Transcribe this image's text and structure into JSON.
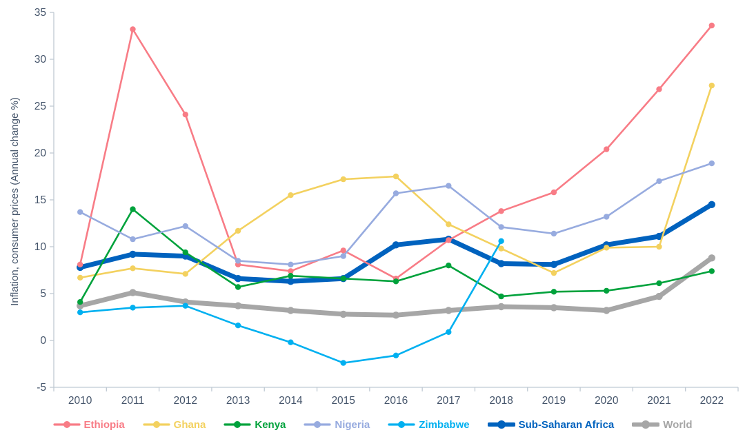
{
  "chart_data": {
    "type": "line",
    "title": "",
    "ylabel": "Inflation, consumer prices (Annual change %)",
    "xlabel": "",
    "x": [
      2010,
      2011,
      2012,
      2013,
      2014,
      2015,
      2016,
      2017,
      2018,
      2019,
      2020,
      2021,
      2022
    ],
    "ylim": [
      -5,
      35
    ],
    "yticks": [
      -5,
      0,
      5,
      10,
      15,
      20,
      25,
      30,
      35
    ],
    "grid": false,
    "legend_position": "bottom",
    "axis_color": "#bfc9d3",
    "text_color": "#44546a",
    "series": [
      {
        "name": "Ethiopia",
        "color": "#f87c86",
        "line_width": 2.6,
        "values": [
          8.1,
          33.2,
          24.1,
          8.1,
          7.4,
          9.6,
          6.6,
          10.7,
          13.8,
          15.8,
          20.4,
          26.8,
          33.6
        ]
      },
      {
        "name": "Ghana",
        "color": "#f3d15f",
        "line_width": 2.6,
        "values": [
          6.7,
          7.7,
          7.1,
          11.7,
          15.5,
          17.2,
          17.5,
          12.4,
          9.8,
          7.2,
          9.9,
          10.0,
          27.2
        ]
      },
      {
        "name": "Kenya",
        "color": "#00a23c",
        "line_width": 2.6,
        "values": [
          4.1,
          14.0,
          9.4,
          5.7,
          6.9,
          6.6,
          6.3,
          8.0,
          4.7,
          5.2,
          5.3,
          6.1,
          7.4
        ]
      },
      {
        "name": "Nigeria",
        "color": "#97abdf",
        "line_width": 2.6,
        "values": [
          13.7,
          10.8,
          12.2,
          8.5,
          8.1,
          9.0,
          15.7,
          16.5,
          12.1,
          11.4,
          13.2,
          17.0,
          18.9
        ]
      },
      {
        "name": "Zimbabwe",
        "color": "#00b0f0",
        "line_width": 2.6,
        "values": [
          3.0,
          3.5,
          3.7,
          1.6,
          -0.2,
          -2.4,
          -1.6,
          0.9,
          10.6,
          null,
          null,
          null,
          null
        ]
      },
      {
        "name": "Sub-Saharan Africa",
        "color": "#0062be",
        "line_width": 7,
        "values": [
          7.8,
          9.2,
          9.0,
          6.6,
          6.3,
          6.6,
          10.2,
          10.8,
          8.2,
          8.1,
          10.2,
          11.1,
          14.5
        ]
      },
      {
        "name": "World",
        "color": "#a6a6a6",
        "line_width": 7,
        "values": [
          3.7,
          5.1,
          4.1,
          3.7,
          3.2,
          2.8,
          2.7,
          3.2,
          3.6,
          3.5,
          3.2,
          4.7,
          8.8
        ]
      }
    ]
  }
}
